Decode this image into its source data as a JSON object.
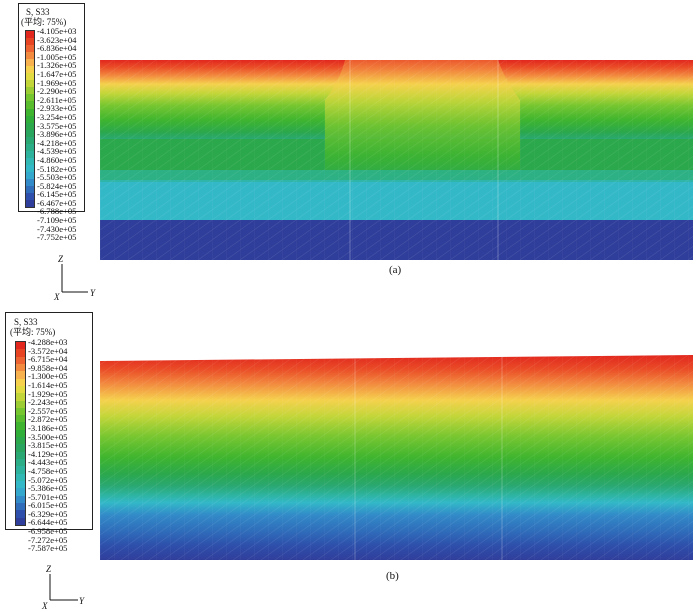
{
  "panel_a": {
    "legend_title": "S, S33",
    "legend_subtitle": "(平均: 75%)",
    "labels": [
      "-4.105e+03",
      "-3.623e+04",
      "-6.836e+04",
      "-1.005e+05",
      "-1.326e+05",
      "-1.647e+05",
      "-1.969e+05",
      "-2.290e+05",
      "-2.611e+05",
      "-2.933e+05",
      "-3.254e+05",
      "-3.575e+05",
      "-3.896e+05",
      "-4.218e+05",
      "-4.539e+05",
      "-4.860e+05",
      "-5.182e+05",
      "-5.503e+05",
      "-5.824e+05",
      "-6.145e+05",
      "-6.467e+05",
      "-6.788e+05",
      "-7.109e+05",
      "-7.430e+05",
      "-7.752e+05"
    ],
    "caption": "(a)",
    "axes": {
      "vertical": "Z",
      "left": "X",
      "right": "Y"
    }
  },
  "panel_b": {
    "legend_title": "S, S33",
    "legend_subtitle": "(平均: 75%)",
    "labels": [
      "-4.288e+03",
      "-3.572e+04",
      "-6.715e+04",
      "-9.858e+04",
      "-1.300e+05",
      "-1.614e+05",
      "-1.929e+05",
      "-2.243e+05",
      "-2.557e+05",
      "-2.872e+05",
      "-3.186e+05",
      "-3.500e+05",
      "-3.815e+05",
      "-4.129e+05",
      "-4.443e+05",
      "-4.758e+05",
      "-5.072e+05",
      "-5.386e+05",
      "-5.701e+05",
      "-6.015e+05",
      "-6.329e+05",
      "-6.644e+05",
      "-6.958e+05",
      "-7.272e+05",
      "-7.587e+05"
    ],
    "caption": "(b)",
    "axes": {
      "vertical": "Z",
      "left": "X",
      "right": "Y"
    }
  },
  "colormap": [
    "#e1271e",
    "#e74424",
    "#ed6331",
    "#f28a3f",
    "#f7b24f",
    "#f5d14d",
    "#e2dc42",
    "#c2d63a",
    "#9ccd33",
    "#76c630",
    "#5abd2e",
    "#3fb52f",
    "#2fae3a",
    "#2ba84c",
    "#2aa55f",
    "#2aa873",
    "#2bad88",
    "#2db39d",
    "#31b8b4",
    "#33b8c8",
    "#34a8cd",
    "#328bc8",
    "#2f6cba",
    "#2e4fab",
    "#303e9b"
  ]
}
